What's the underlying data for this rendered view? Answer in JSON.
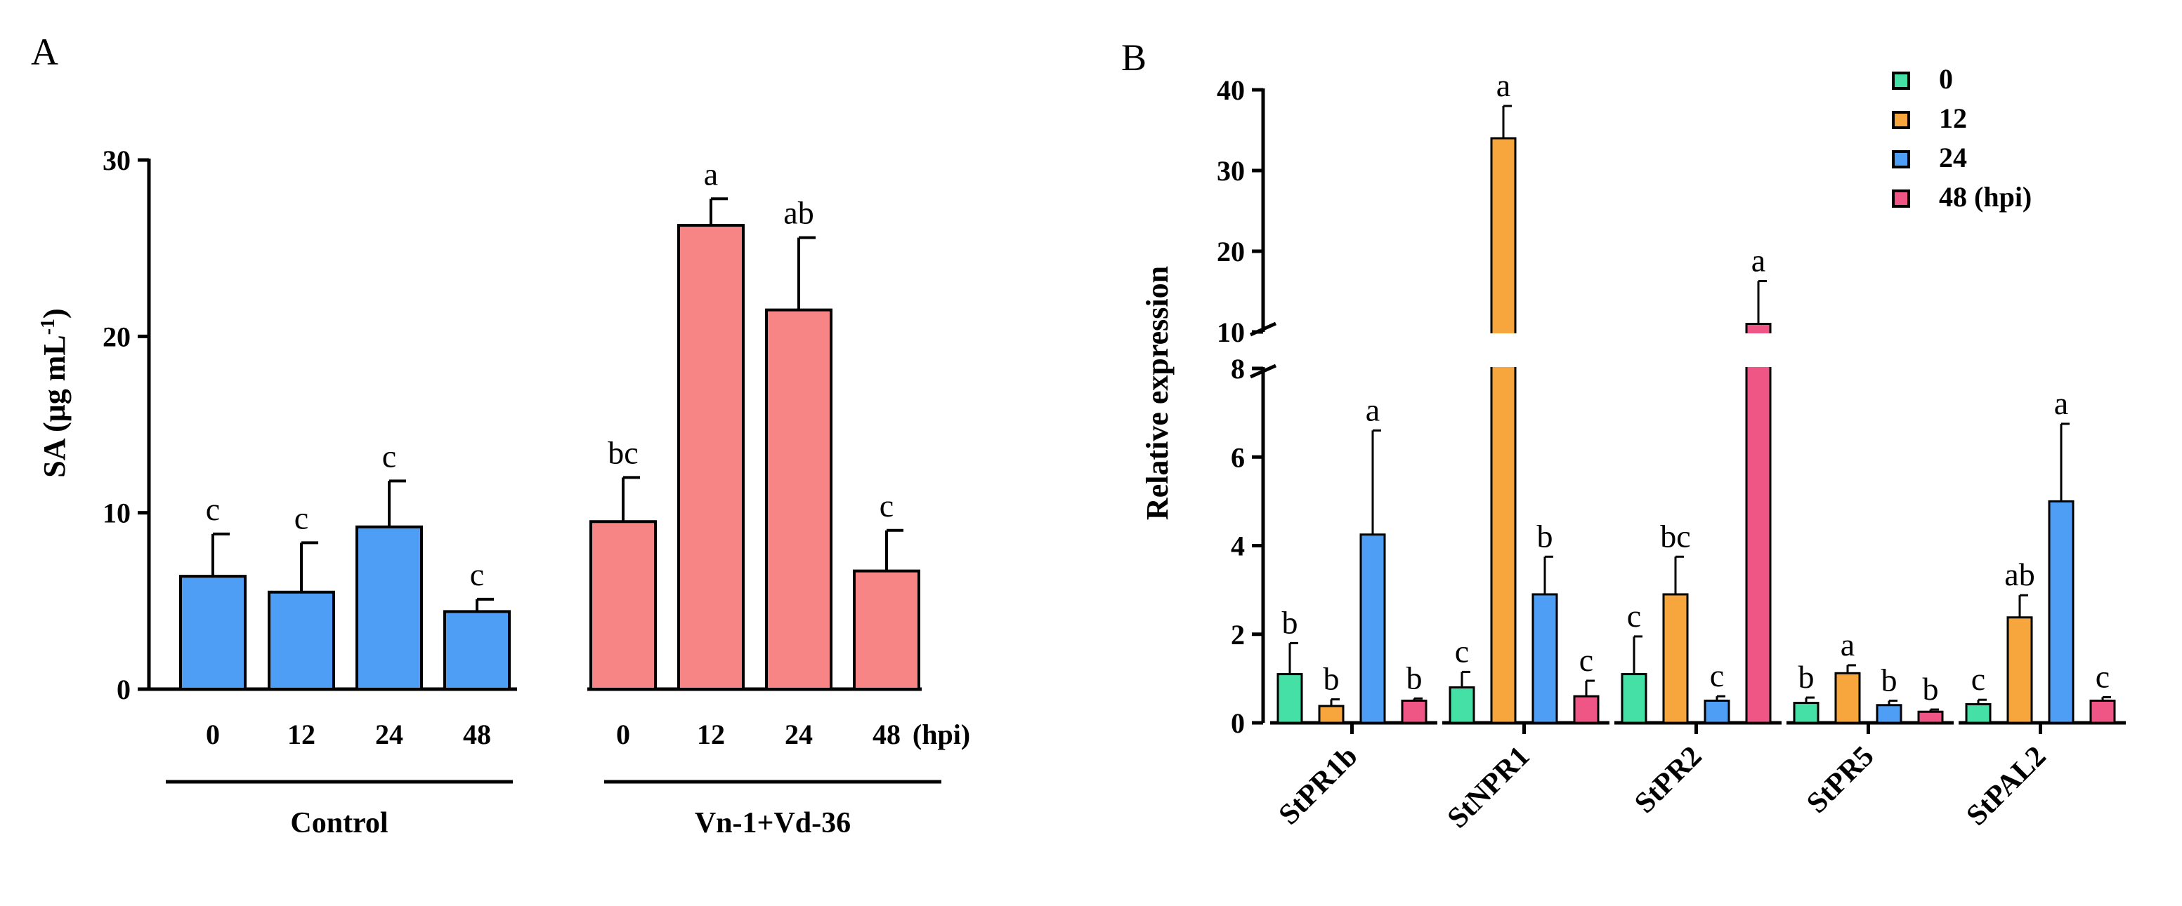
{
  "chart_data": [
    {
      "panel": "A",
      "type": "bar",
      "ylabel_main": "SA (μg mL",
      "ylabel_sup": "-1",
      "ylabel_close": ")",
      "ylim": [
        0,
        30
      ],
      "yticks": [
        0,
        10,
        20,
        30
      ],
      "unit_label": "(hpi)",
      "categories": [
        "0",
        "12",
        "24",
        "48"
      ],
      "groups": [
        {
          "name": "Control",
          "color": "#4f9ef5",
          "values": [
            6.4,
            5.5,
            9.2,
            4.4
          ],
          "errors": [
            2.4,
            2.8,
            2.6,
            0.7
          ],
          "letters": [
            "c",
            "c",
            "c",
            "c"
          ]
        },
        {
          "name": "Vn-1+Vd-36",
          "color": "#f78585",
          "values": [
            9.5,
            26.3,
            21.5,
            6.7
          ],
          "errors": [
            2.5,
            1.5,
            4.1,
            2.3
          ],
          "letters": [
            "bc",
            "a",
            "ab",
            "c"
          ]
        }
      ]
    },
    {
      "panel": "B",
      "type": "bar",
      "ylabel": "Relative expression",
      "broken_axis": {
        "lower_range": [
          0,
          8
        ],
        "lower_ticks": [
          0,
          2,
          4,
          6,
          8
        ],
        "upper_range": [
          10,
          40
        ],
        "upper_ticks": [
          10,
          20,
          30,
          40
        ]
      },
      "genes": [
        "StPR1b",
        "StNPR1",
        "StPR2",
        "StPR5",
        "StPAL2"
      ],
      "series": [
        {
          "name": "0",
          "color": "#45e0a5",
          "values": [
            1.1,
            0.8,
            1.1,
            0.45,
            0.42
          ],
          "errors": [
            0.7,
            0.35,
            0.85,
            0.12,
            0.1
          ],
          "letters": [
            "b",
            "c",
            "c",
            "b",
            "c"
          ]
        },
        {
          "name": "12",
          "color": "#f7a53d",
          "values": [
            0.38,
            34.0,
            2.9,
            1.12,
            2.38
          ],
          "errors": [
            0.15,
            4.0,
            0.85,
            0.18,
            0.5
          ],
          "letters": [
            "b",
            "a",
            "bc",
            "a",
            "ab"
          ]
        },
        {
          "name": "24",
          "color": "#4f9ef5",
          "values": [
            4.25,
            2.9,
            0.5,
            0.4,
            5.0
          ],
          "errors": [
            2.35,
            0.85,
            0.1,
            0.1,
            1.75
          ],
          "letters": [
            "a",
            "b",
            "c",
            "b",
            "a"
          ]
        },
        {
          "name": "48 (hpi)",
          "color": "#ef5585",
          "values": [
            0.5,
            0.6,
            11.0,
            0.25,
            0.5
          ],
          "errors": [
            0.05,
            0.35,
            5.3,
            0.05,
            0.08
          ],
          "letters": [
            "b",
            "c",
            "a",
            "b",
            "c"
          ]
        }
      ]
    }
  ]
}
